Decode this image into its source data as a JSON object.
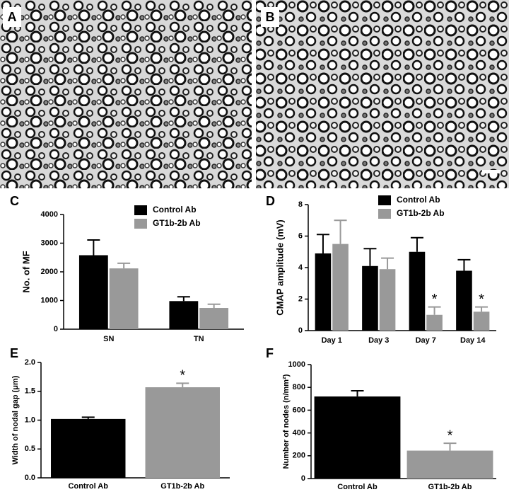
{
  "images": [
    {
      "label": "A"
    },
    {
      "label": "B"
    }
  ],
  "chart_data": [
    {
      "type": "grouped-bar",
      "label": "C",
      "ylabel": "No. of MF",
      "categories": [
        "SN",
        "TN"
      ],
      "series": [
        {
          "name": "Control Ab",
          "color": "#000000",
          "values": [
            2580,
            980
          ],
          "errors": [
            530,
            150
          ]
        },
        {
          "name": "GT1b-2b Ab",
          "color": "#999999",
          "values": [
            2120,
            740
          ],
          "errors": [
            180,
            130
          ]
        }
      ],
      "ylim": [
        0,
        4000
      ],
      "yticks": [
        0,
        1000,
        2000,
        3000,
        4000
      ],
      "legend": "top-center"
    },
    {
      "type": "grouped-bar",
      "label": "D",
      "ylabel": "CMAP amplitude (mV)",
      "categories": [
        "Day 1",
        "Day 3",
        "Day 7",
        "Day 14"
      ],
      "series": [
        {
          "name": "Control Ab",
          "color": "#000000",
          "values": [
            4.9,
            4.1,
            5.0,
            3.8
          ],
          "errors": [
            1.2,
            1.1,
            0.9,
            0.7
          ]
        },
        {
          "name": "GT1b-2b Ab",
          "color": "#999999",
          "values": [
            5.5,
            3.9,
            1.0,
            1.2
          ],
          "errors": [
            1.5,
            0.7,
            0.5,
            0.3
          ],
          "annotations": [
            null,
            null,
            "*",
            "*"
          ]
        }
      ],
      "ylim": [
        0,
        8
      ],
      "yticks": [
        0,
        2,
        4,
        6,
        8
      ],
      "legend": "top-right"
    },
    {
      "type": "bar",
      "label": "E",
      "ylabel": "Width of nodal gap (μm)",
      "categories": [
        "Control Ab",
        "GT1b-2b Ab"
      ],
      "values": [
        1.02,
        1.57
      ],
      "errors": [
        0.03,
        0.07
      ],
      "colors": [
        "#000000",
        "#999999"
      ],
      "annotations": [
        null,
        "*"
      ],
      "ylim": [
        0,
        2.0
      ],
      "yticks": [
        {
          "value": 0,
          "label": "0.0"
        },
        0.5,
        {
          "value": 1,
          "label": "1.0"
        },
        1.5,
        {
          "value": 2,
          "label": "2.0"
        }
      ]
    },
    {
      "type": "bar",
      "label": "F",
      "ylabel": "Number of nodes (n/mm²)",
      "categories": [
        "Control Ab",
        "GT1b-2b Ab"
      ],
      "values": [
        720,
        245
      ],
      "errors": [
        50,
        65
      ],
      "colors": [
        "#000000",
        "#999999"
      ],
      "annotations": [
        null,
        "*"
      ],
      "ylim": [
        0,
        1000
      ],
      "yticks": [
        0,
        200,
        400,
        600,
        800,
        1000
      ]
    }
  ]
}
